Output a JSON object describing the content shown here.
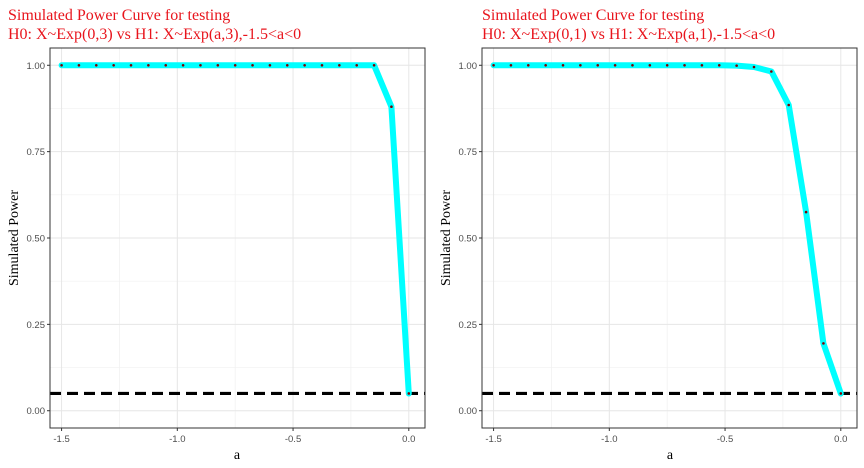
{
  "chart_data": [
    {
      "type": "line",
      "title": [
        "Simulated Power Curve for testing",
        " H0:  X~Exp(0,3)  vs H1:  X~Exp(a,3),-1.5<a<0"
      ],
      "xlabel": "a",
      "ylabel": "Simulated Power",
      "xlim": [
        -1.55,
        0.07
      ],
      "ylim": [
        -0.05,
        1.05
      ],
      "xticks": [
        -1.5,
        -1.0,
        -0.5,
        0.0
      ],
      "xtick_labels": [
        "-1.5",
        "-1.0",
        "-0.5",
        "0.0"
      ],
      "yticks": [
        0.0,
        0.25,
        0.5,
        0.75,
        1.0
      ],
      "ytick_labels": [
        "0.00",
        "0.25",
        "0.50",
        "0.75",
        "1.00"
      ],
      "reference_line": {
        "y": 0.05,
        "style": "dashed",
        "color": "#000000"
      },
      "series": [
        {
          "name": "power",
          "color": "#00ffff",
          "marker_color": "#7f0000",
          "x": [
            -1.5,
            -1.425,
            -1.35,
            -1.275,
            -1.2,
            -1.125,
            -1.05,
            -0.975,
            -0.9,
            -0.825,
            -0.75,
            -0.675,
            -0.6,
            -0.525,
            -0.45,
            -0.375,
            -0.3,
            -0.225,
            -0.15,
            -0.075,
            0.0
          ],
          "y": [
            1,
            1,
            1,
            1,
            1,
            1,
            1,
            1,
            1,
            1,
            1,
            1,
            1,
            1,
            1,
            1,
            1,
            1,
            1,
            0.88,
            0.05
          ]
        }
      ]
    },
    {
      "type": "line",
      "title": [
        "Simulated Power Curve for testing",
        " H0:  X~Exp(0,1)  vs H1:  X~Exp(a,1),-1.5<a<0"
      ],
      "xlabel": "a",
      "ylabel": "Simulated Power",
      "xlim": [
        -1.55,
        0.07
      ],
      "ylim": [
        -0.05,
        1.05
      ],
      "xticks": [
        -1.5,
        -1.0,
        -0.5,
        0.0
      ],
      "xtick_labels": [
        "-1.5",
        "-1.0",
        "-0.5",
        "0.0"
      ],
      "yticks": [
        0.0,
        0.25,
        0.5,
        0.75,
        1.0
      ],
      "ytick_labels": [
        "0.00",
        "0.25",
        "0.50",
        "0.75",
        "1.00"
      ],
      "reference_line": {
        "y": 0.05,
        "style": "dashed",
        "color": "#000000"
      },
      "series": [
        {
          "name": "power",
          "color": "#00ffff",
          "marker_color": "#7f0000",
          "x": [
            -1.5,
            -1.425,
            -1.35,
            -1.275,
            -1.2,
            -1.125,
            -1.05,
            -0.975,
            -0.9,
            -0.825,
            -0.75,
            -0.675,
            -0.6,
            -0.525,
            -0.45,
            -0.375,
            -0.3,
            -0.225,
            -0.15,
            -0.075,
            0.0
          ],
          "y": [
            1,
            1,
            1,
            1,
            1,
            1,
            1,
            1,
            1,
            1,
            1,
            1,
            1,
            1,
            0.999,
            0.995,
            0.982,
            0.885,
            0.575,
            0.195,
            0.05
          ]
        }
      ]
    }
  ]
}
